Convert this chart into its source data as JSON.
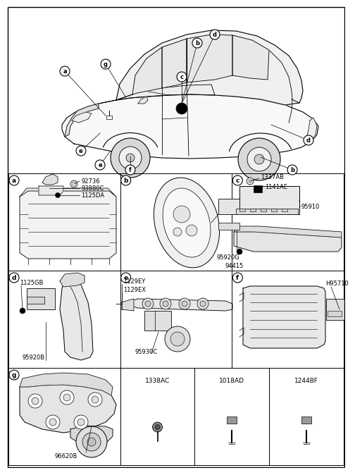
{
  "bg_color": "#ffffff",
  "text_color": "#000000",
  "grid_color": "#000000",
  "line_color": "#000000",
  "part_labels": {
    "a": [
      "92736",
      "93880C",
      "1125DA"
    ],
    "b": [
      "95920G",
      "94415"
    ],
    "c": [
      "1337AB",
      "1141AE",
      "95910"
    ],
    "d": [
      "1125GB",
      "95920B"
    ],
    "e": [
      "1129EY",
      "1129EX",
      "95930C"
    ],
    "f": [
      "H95710"
    ],
    "g": [
      "96620B"
    ]
  },
  "bottom_labels": [
    "1338AC",
    "1018AD",
    "1244BF"
  ],
  "font_size_part": 6.0,
  "font_size_cell": 6.5,
  "grid_lw": 0.7,
  "draw_lw": 0.6
}
